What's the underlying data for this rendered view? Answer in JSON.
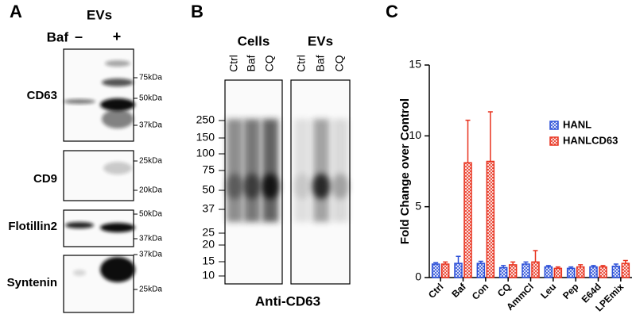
{
  "panels": {
    "a": {
      "label": "A",
      "header": "EVs",
      "treatment": "Baf",
      "conditions": [
        "–",
        "+"
      ],
      "blots": [
        {
          "name": "CD63",
          "markers": [
            "75kDa",
            "50kDa",
            "37kDa"
          ]
        },
        {
          "name": "CD9",
          "markers": [
            "25kDa",
            "20kDa"
          ]
        },
        {
          "name": "Flotillin2",
          "markers": [
            "50kDa",
            "37kDa"
          ]
        },
        {
          "name": "Syntenin",
          "markers": [
            "37kDa",
            "25kDa"
          ]
        }
      ]
    },
    "b": {
      "label": "B",
      "groups": [
        "Cells",
        "EVs"
      ],
      "lanes": [
        "Ctrl",
        "Baf",
        "CQ"
      ],
      "markers": [
        250,
        150,
        100,
        75,
        50,
        37,
        25,
        20,
        15,
        10
      ],
      "caption": "Anti-CD63"
    }
  },
  "chart_data": {
    "type": "bar",
    "label": "C",
    "ylabel": "Fold Change over Control",
    "categories": [
      "Ctrl",
      "Baf",
      "Con",
      "CQ",
      "AmmCl",
      "Leu",
      "Pep",
      "E64d",
      "LPEmix"
    ],
    "series": [
      {
        "name": "HANL",
        "color": "#2b4fd8",
        "values": [
          0.95,
          1.0,
          1.0,
          0.7,
          0.95,
          0.75,
          0.65,
          0.75,
          0.8
        ],
        "errors": [
          0.1,
          0.5,
          0.15,
          0.15,
          0.15,
          0.1,
          0.1,
          0.1,
          0.15
        ]
      },
      {
        "name": "HANLCD63",
        "color": "#e8321e",
        "values": [
          0.95,
          8.1,
          8.2,
          0.9,
          1.1,
          0.65,
          0.75,
          0.75,
          1.0
        ],
        "errors": [
          0.15,
          3.0,
          3.5,
          0.2,
          0.8,
          0.1,
          0.15,
          0.1,
          0.2
        ]
      }
    ],
    "ylim": [
      0,
      15
    ],
    "yticks": [
      0,
      5,
      10,
      15
    ],
    "legend": "upper right"
  }
}
